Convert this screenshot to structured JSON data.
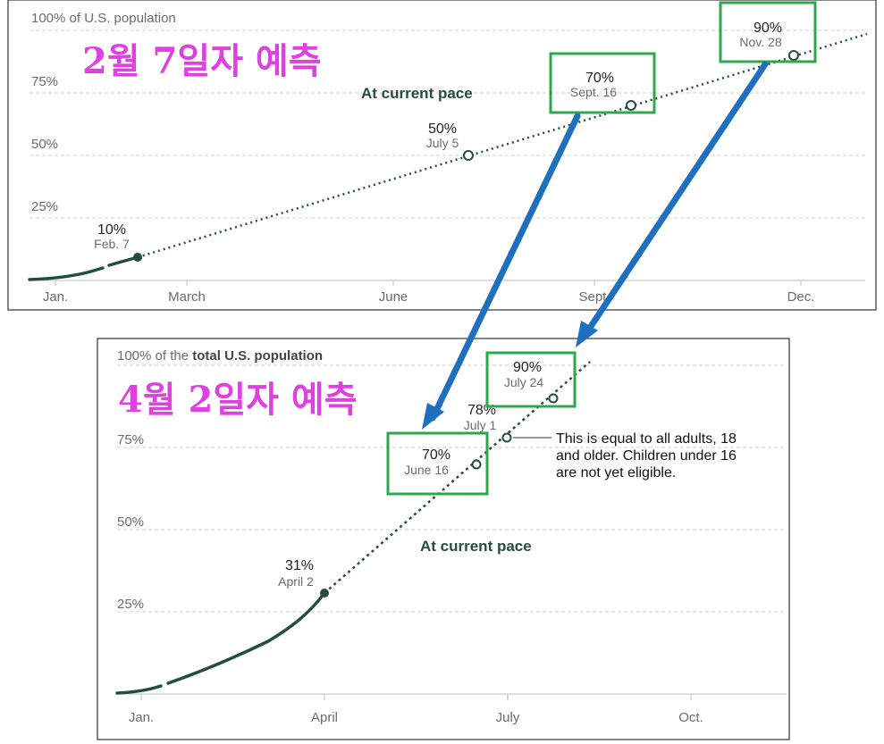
{
  "colors": {
    "line": "#234e3c",
    "highlight_box": "#2ea84f",
    "arrow": "#1f6fbf",
    "korean_text": "#e040e0",
    "grid": "#cfcfcf"
  },
  "chart_data": [
    {
      "type": "line",
      "title": "100% of U.S. population",
      "annotation_korean": "2월 7일자 예측",
      "pace_label": "At current pace",
      "x_ticks": [
        "Jan.",
        "March",
        "June",
        "Sept.",
        "Dec."
      ],
      "y_ticks": [
        "100% of U.S. population",
        "75%",
        "50%",
        "25%"
      ],
      "ylim": [
        0,
        100
      ],
      "grid": true,
      "actual": {
        "x": [
          "Jan. 1",
          "Jan. 15",
          "Jan. 25",
          "Feb. 7"
        ],
        "y": [
          0,
          2,
          5,
          10
        ]
      },
      "projection_start": {
        "x": "Feb. 7",
        "y": 10
      },
      "projection_end_y": 100,
      "points": [
        {
          "pct": "10%",
          "date": "Feb. 7",
          "y": 10,
          "kind": "filled"
        },
        {
          "pct": "50%",
          "date": "July 5",
          "y": 50,
          "kind": "open"
        },
        {
          "pct": "70%",
          "date": "Sept. 16",
          "y": 70,
          "kind": "open",
          "highlighted": true
        },
        {
          "pct": "90%",
          "date": "Nov. 28",
          "y": 90,
          "kind": "open",
          "highlighted": true
        }
      ]
    },
    {
      "type": "line",
      "title_prefix": "100% of the ",
      "title_bold": "total U.S. population",
      "annotation_korean": "4월 2일자 예측",
      "pace_label": "At current pace",
      "x_ticks": [
        "Jan.",
        "April",
        "July",
        "Oct."
      ],
      "y_ticks": [
        "75%",
        "50%",
        "25%"
      ],
      "ylim": [
        0,
        100
      ],
      "grid": true,
      "actual": {
        "x": [
          "Jan. 1",
          "Jan. 20",
          "Feb. 15",
          "March 10",
          "April 2"
        ],
        "y": [
          0,
          2,
          8,
          18,
          31
        ]
      },
      "points": [
        {
          "pct": "31%",
          "date": "April 2",
          "y": 31,
          "kind": "filled"
        },
        {
          "pct": "70%",
          "date": "June 16",
          "y": 70,
          "kind": "open",
          "highlighted": true
        },
        {
          "pct": "78%",
          "date": "July 1",
          "y": 78,
          "kind": "open"
        },
        {
          "pct": "90%",
          "date": "July 24",
          "y": 90,
          "kind": "open",
          "highlighted": true
        }
      ],
      "note_lines": [
        "This is equal to all adults, 18",
        "and older. Children under 16",
        "are not yet eligible."
      ]
    }
  ]
}
